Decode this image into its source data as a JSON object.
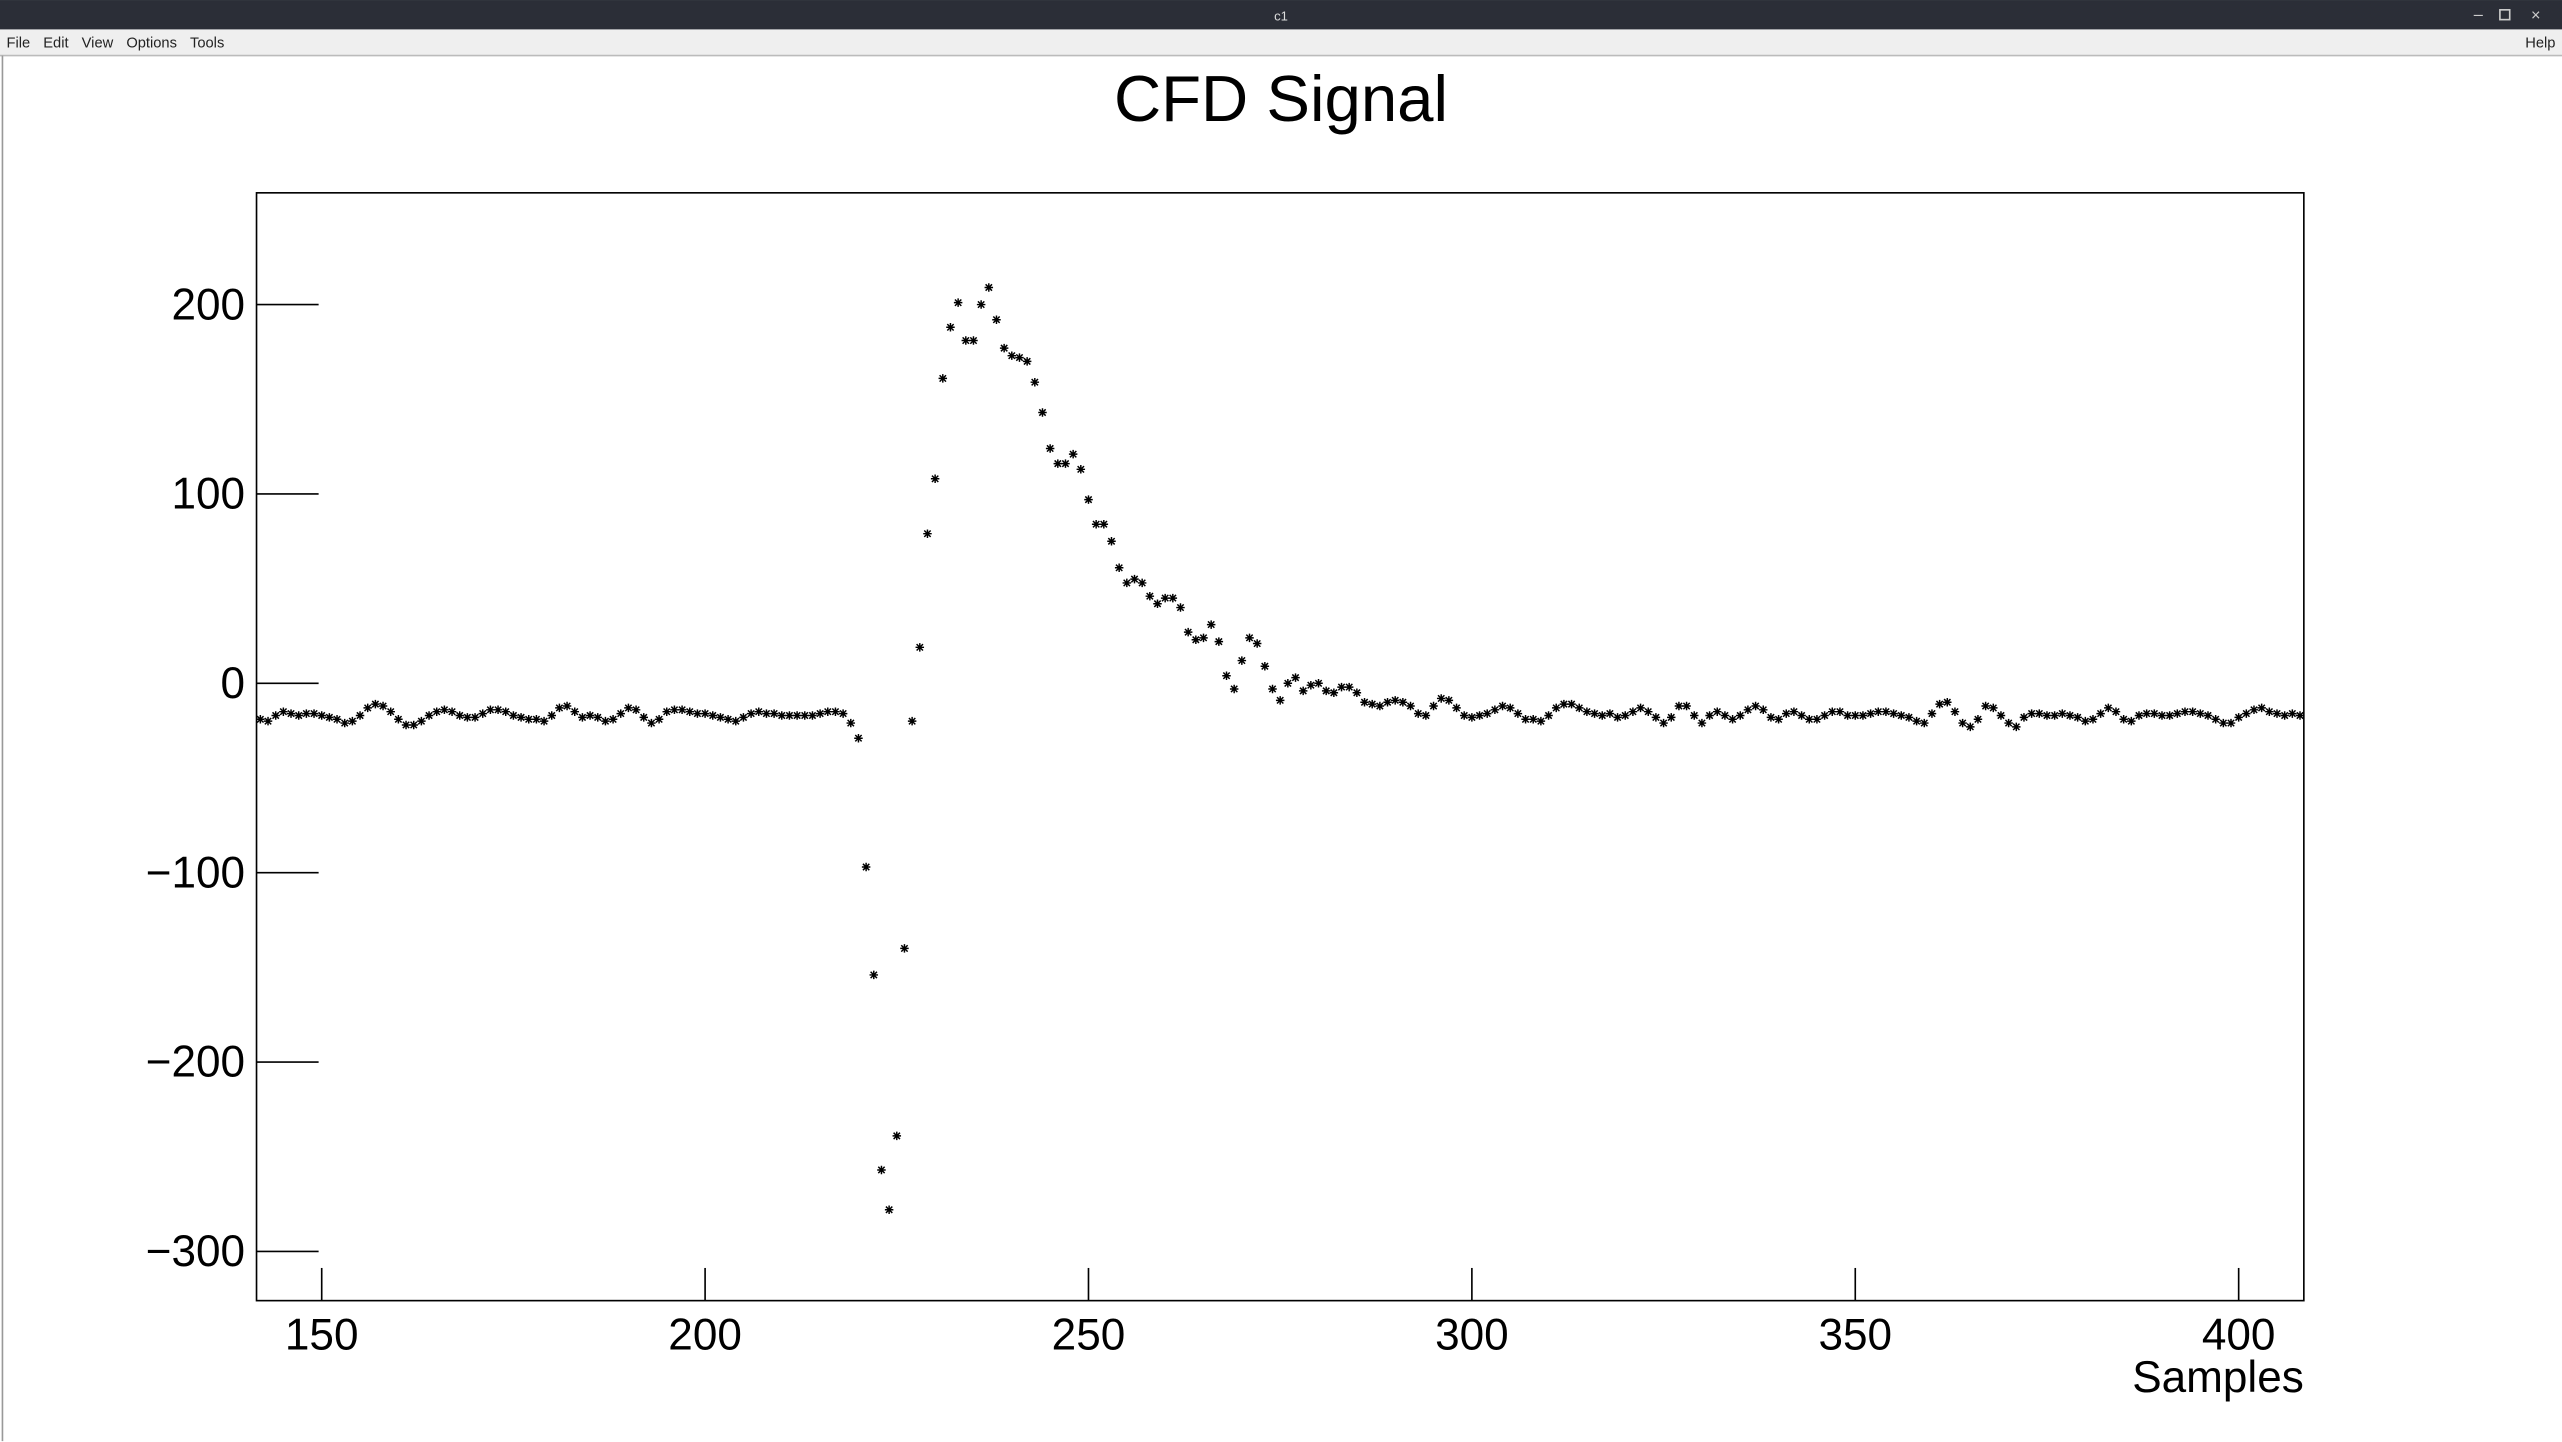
{
  "window": {
    "title": "c1",
    "menu": [
      "File",
      "Edit",
      "View",
      "Options",
      "Tools"
    ],
    "help": "Help"
  },
  "chart_data": {
    "type": "scatter",
    "title": "CFD Signal",
    "x_label": "Samples",
    "color": "#000000",
    "marker": "star",
    "xlim": [
      141.5,
      408.5
    ],
    "ylim": [
      -326,
      259
    ],
    "xticks": [
      150,
      200,
      250,
      300,
      350,
      400
    ],
    "yticks": [
      {
        "value": -300,
        "label": "−300"
      },
      {
        "value": -200,
        "label": "−200"
      },
      {
        "value": -100,
        "label": "−100"
      },
      0,
      100,
      200
    ],
    "x": [
      142,
      143,
      144,
      145,
      146,
      147,
      148,
      149,
      150,
      151,
      152,
      153,
      154,
      155,
      156,
      157,
      158,
      159,
      160,
      161,
      162,
      163,
      164,
      165,
      166,
      167,
      168,
      169,
      170,
      171,
      172,
      173,
      174,
      175,
      176,
      177,
      178,
      179,
      180,
      181,
      182,
      183,
      184,
      185,
      186,
      187,
      188,
      189,
      190,
      191,
      192,
      193,
      194,
      195,
      196,
      197,
      198,
      199,
      200,
      201,
      202,
      203,
      204,
      205,
      206,
      207,
      208,
      209,
      210,
      211,
      212,
      213,
      214,
      215,
      216,
      217,
      218,
      219,
      220,
      221,
      222,
      223,
      224,
      225,
      226,
      227,
      228,
      229,
      230,
      231,
      232,
      233,
      234,
      235,
      236,
      237,
      238,
      239,
      240,
      241,
      242,
      243,
      244,
      245,
      246,
      247,
      248,
      249,
      250,
      251,
      252,
      253,
      254,
      255,
      256,
      257,
      258,
      259,
      260,
      261,
      262,
      263,
      264,
      265,
      266,
      267,
      268,
      269,
      270,
      271,
      272,
      273,
      274,
      275,
      276,
      277,
      278,
      279,
      280,
      281,
      282,
      283,
      284,
      285,
      286,
      287,
      288,
      289,
      290,
      291,
      292,
      293,
      294,
      295,
      296,
      297,
      298,
      299,
      300,
      301,
      302,
      303,
      304,
      305,
      306,
      307,
      308,
      309,
      310,
      311,
      312,
      313,
      314,
      315,
      316,
      317,
      318,
      319,
      320,
      321,
      322,
      323,
      324,
      325,
      326,
      327,
      328,
      329,
      330,
      331,
      332,
      333,
      334,
      335,
      336,
      337,
      338,
      339,
      340,
      341,
      342,
      343,
      344,
      345,
      346,
      347,
      348,
      349,
      350,
      351,
      352,
      353,
      354,
      355,
      356,
      357,
      358,
      359,
      360,
      361,
      362,
      363,
      364,
      365,
      366,
      367,
      368,
      369,
      370,
      371,
      372,
      373,
      374,
      375,
      376,
      377,
      378,
      379,
      380,
      381,
      382,
      383,
      384,
      385,
      386,
      387,
      388,
      389,
      390,
      391,
      392,
      393,
      394,
      395,
      396,
      397,
      398,
      399,
      400,
      401,
      402,
      403,
      404,
      405,
      406,
      407,
      408
    ],
    "values": [
      -19,
      -20,
      -17,
      -15,
      -16,
      -17,
      -16,
      -16,
      -17,
      -18,
      -19,
      -21,
      -20,
      -17,
      -13,
      -11,
      -12,
      -15,
      -19,
      -22,
      -22,
      -20,
      -17,
      -15,
      -14,
      -15,
      -17,
      -18,
      -18,
      -16,
      -14,
      -14,
      -15,
      -17,
      -18,
      -19,
      -19,
      -20,
      -17,
      -13,
      -12,
      -15,
      -18,
      -17,
      -18,
      -20,
      -19,
      -16,
      -13,
      -14,
      -18,
      -21,
      -19,
      -15,
      -14,
      -14,
      -15,
      -16,
      -16,
      -17,
      -18,
      -19,
      -20,
      -18,
      -16,
      -15,
      -16,
      -16,
      -17,
      -17,
      -17,
      -17,
      -17,
      -16,
      -15,
      -15,
      -16,
      -21,
      -29,
      -97,
      -154,
      -257,
      -278,
      -239,
      -140,
      -20,
      19,
      79,
      108,
      161,
      188,
      201,
      181,
      181,
      200,
      209,
      192,
      177,
      173,
      172,
      170,
      159,
      143,
      124,
      116,
      116,
      121,
      113,
      97,
      84,
      84,
      75,
      61,
      53,
      55,
      53,
      46,
      42,
      45,
      45,
      40,
      27,
      23,
      24,
      31,
      22,
      4,
      -3,
      12,
      24,
      21,
      9,
      -3,
      -9,
      0,
      3,
      -4,
      -1,
      0,
      -4,
      -5,
      -2,
      -2,
      -5,
      -10,
      -11,
      -12,
      -10,
      -9,
      -10,
      -12,
      -16,
      -17,
      -12,
      -8,
      -9,
      -13,
      -17,
      -18,
      -17,
      -16,
      -14,
      -12,
      -13,
      -16,
      -19,
      -19,
      -20,
      -17,
      -13,
      -11,
      -11,
      -13,
      -15,
      -16,
      -17,
      -16,
      -18,
      -17,
      -15,
      -13,
      -15,
      -18,
      -21,
      -18,
      -12,
      -12,
      -17,
      -21,
      -17,
      -15,
      -17,
      -19,
      -17,
      -14,
      -12,
      -14,
      -18,
      -19,
      -16,
      -15,
      -17,
      -19,
      -19,
      -17,
      -15,
      -15,
      -17,
      -17,
      -17,
      -16,
      -15,
      -15,
      -16,
      -17,
      -18,
      -20,
      -21,
      -16,
      -11,
      -10,
      -15,
      -21,
      -23,
      -19,
      -12,
      -13,
      -17,
      -21,
      -23,
      -18,
      -16,
      -16,
      -17,
      -17,
      -16,
      -17,
      -18,
      -20,
      -19,
      -16,
      -13,
      -15,
      -19,
      -20,
      -17,
      -16,
      -16,
      -17,
      -17,
      -16,
      -15,
      -15,
      -16,
      -17,
      -19,
      -21,
      -21,
      -18,
      -16,
      -14,
      -13,
      -15,
      -16,
      -17,
      -16,
      -17
    ]
  }
}
